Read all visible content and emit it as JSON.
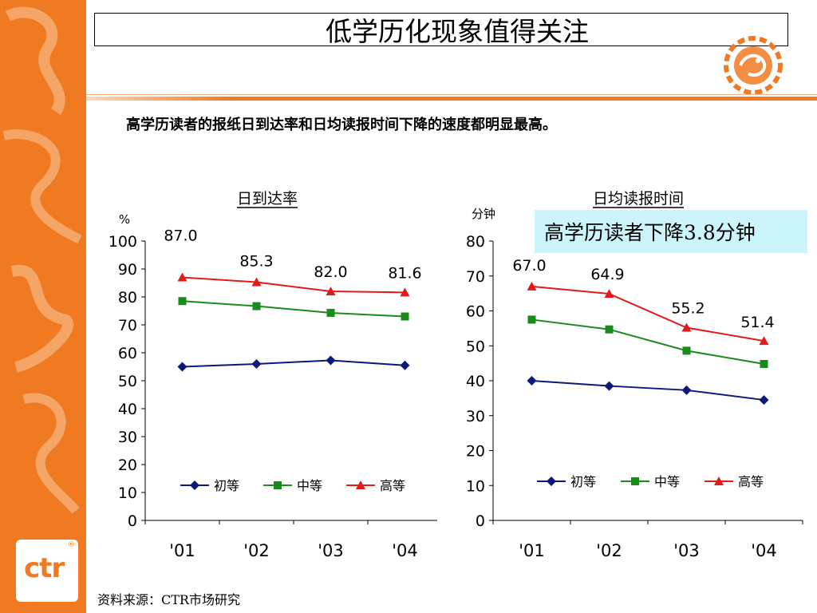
{
  "title": "低学历化现象值得关注",
  "subtitle": "高学历读者的报纸日到达率和日均读报时间下降的速度都明显最高。",
  "callout": "高学历读者下降3.8分钟",
  "source": "资料来源：CTR市场研究",
  "logo_text": "ctr",
  "colors": {
    "accent": "#f07a22",
    "series_low": "#0a1a7a",
    "series_mid": "#1a8a1a",
    "series_high": "#e31a1a",
    "callout_bg": "#ccf5fb"
  },
  "chart_data": [
    {
      "type": "line",
      "title": "日到达率",
      "ylabel": "%",
      "categories": [
        "'01",
        "'02",
        "'03",
        "'04"
      ],
      "ylim": [
        0,
        100
      ],
      "yticks": [
        0,
        10,
        20,
        30,
        40,
        50,
        60,
        70,
        80,
        90,
        100
      ],
      "legend_position": "bottom",
      "series": [
        {
          "name": "初等",
          "values": [
            55.0,
            56.0,
            57.3,
            55.5
          ],
          "color": "#0a1a7a",
          "marker": "diamond"
        },
        {
          "name": "中等",
          "values": [
            78.5,
            76.7,
            74.3,
            73.0
          ],
          "color": "#1a8a1a",
          "marker": "square"
        },
        {
          "name": "高等",
          "values": [
            87.0,
            85.3,
            82.0,
            81.6
          ],
          "color": "#e31a1a",
          "marker": "triangle"
        }
      ],
      "data_labels": [
        "87.0",
        "85.3",
        "82.0",
        "81.6"
      ]
    },
    {
      "type": "line",
      "title": "日均读报时间",
      "ylabel": "分钟",
      "categories": [
        "'01",
        "'02",
        "'03",
        "'04"
      ],
      "ylim": [
        0,
        80
      ],
      "yticks": [
        0,
        10,
        20,
        30,
        40,
        50,
        60,
        70,
        80
      ],
      "legend_position": "bottom",
      "series": [
        {
          "name": "初等",
          "values": [
            40.0,
            38.5,
            37.3,
            34.5
          ],
          "color": "#0a1a7a",
          "marker": "diamond"
        },
        {
          "name": "中等",
          "values": [
            57.5,
            54.7,
            48.6,
            44.8
          ],
          "color": "#1a8a1a",
          "marker": "square"
        },
        {
          "name": "高等",
          "values": [
            67.0,
            64.9,
            55.2,
            51.4
          ],
          "color": "#e31a1a",
          "marker": "triangle"
        }
      ],
      "data_labels": [
        "67.0",
        "64.9",
        "55.2",
        "51.4"
      ]
    }
  ]
}
